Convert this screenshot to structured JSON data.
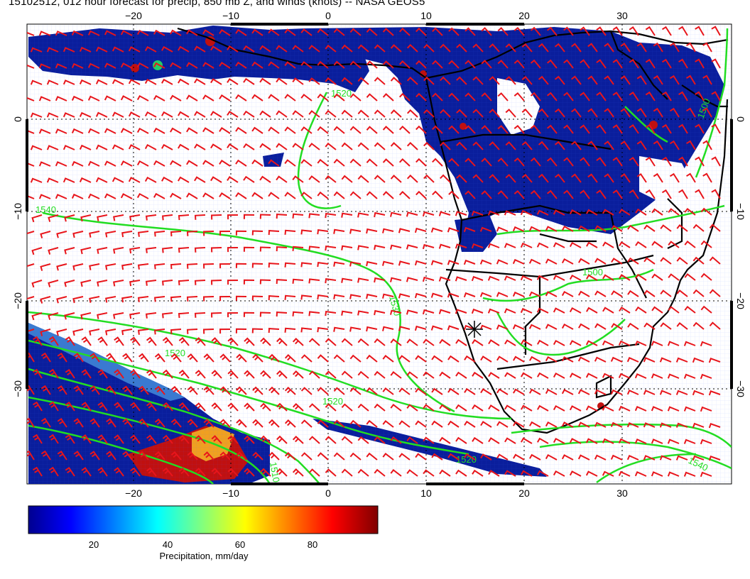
{
  "title": "15102512, 012 hour forecast for precip, 850 mb Z, and winds (knots) -- NASA GEOS5",
  "map": {
    "lon_ticks": [
      "−20",
      "−10",
      "0",
      "10",
      "20",
      "30"
    ],
    "lat_ticks": [
      "0",
      "−10",
      "−20",
      "−30"
    ],
    "contour_labels": [
      "1520",
      "1500",
      "1540",
      "1520",
      "1530",
      "1500",
      "1520",
      "1510",
      "1520",
      "1540"
    ],
    "colors": {
      "land_border": "#000000",
      "contour": "#22dd22",
      "wind_barb": "#e8151b",
      "grid": "#000000",
      "precip_base": "#0a1e9c"
    },
    "icons": [
      "wind-barb-icon",
      "station-marker-icon"
    ]
  },
  "colorbar": {
    "label": "Precipitation, mm/day",
    "ticks": [
      "20",
      "40",
      "60",
      "80"
    ],
    "range": [
      0,
      100
    ],
    "colors": [
      "#00008f",
      "#0000ff",
      "#00ffff",
      "#ffff00",
      "#ff0000",
      "#800000"
    ]
  }
}
